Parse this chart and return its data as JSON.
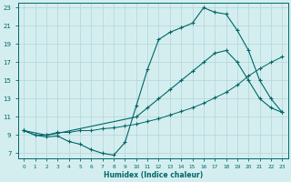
{
  "xlabel": "Humidex (Indice chaleur)",
  "bg_color": "#d4eef0",
  "grid_color": "#c0dde0",
  "line_color": "#006666",
  "xlim": [
    -0.5,
    23.5
  ],
  "ylim": [
    6.5,
    23.5
  ],
  "xticks": [
    0,
    1,
    2,
    3,
    4,
    5,
    6,
    7,
    8,
    9,
    10,
    11,
    12,
    13,
    14,
    15,
    16,
    17,
    18,
    19,
    20,
    21,
    22,
    23
  ],
  "yticks": [
    7,
    9,
    11,
    13,
    15,
    17,
    19,
    21,
    23
  ],
  "curve1_x": [
    0,
    1,
    2,
    3,
    4,
    5,
    6,
    7,
    8,
    9,
    10,
    11,
    12,
    13,
    14,
    15,
    16,
    17,
    18,
    19,
    20,
    21,
    22,
    23
  ],
  "curve1_y": [
    9.5,
    9.0,
    8.8,
    8.9,
    8.3,
    8.0,
    7.4,
    7.0,
    6.8,
    8.2,
    12.2,
    16.2,
    19.5,
    20.3,
    20.8,
    21.3,
    23.0,
    22.5,
    22.3,
    20.5,
    18.3,
    15.0,
    13.0,
    11.5
  ],
  "curve2_x": [
    0,
    1,
    2,
    3,
    4,
    5,
    6,
    7,
    8,
    9,
    10,
    11,
    12,
    13,
    14,
    15,
    16,
    17,
    18,
    19,
    20,
    21,
    22,
    23
  ],
  "curve2_y": [
    9.5,
    9.0,
    9.0,
    9.3,
    9.3,
    9.5,
    9.5,
    9.7,
    9.8,
    10.0,
    10.2,
    10.5,
    10.8,
    11.2,
    11.6,
    12.0,
    12.5,
    13.1,
    13.7,
    14.5,
    15.5,
    16.3,
    17.0,
    17.6
  ],
  "curve3_x": [
    0,
    2,
    3,
    10,
    11,
    12,
    13,
    14,
    15,
    16,
    17,
    18,
    19,
    20,
    21,
    22,
    23
  ],
  "curve3_y": [
    9.5,
    9.0,
    9.2,
    11.0,
    12.0,
    13.0,
    14.0,
    15.0,
    16.0,
    17.0,
    18.0,
    18.3,
    17.0,
    15.0,
    13.0,
    12.0,
    11.5
  ],
  "marker_style": "+"
}
